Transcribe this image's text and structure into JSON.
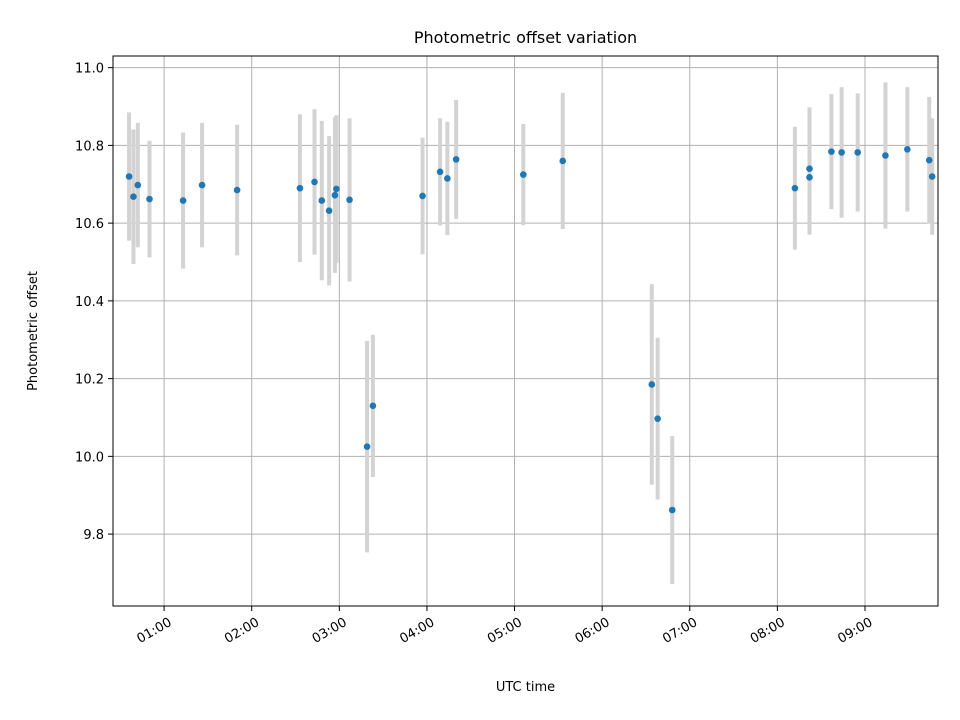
{
  "chart_data": {
    "type": "scatter",
    "title": "Photometric offset variation",
    "xlabel": "UTC time",
    "ylabel": "Photometric offset",
    "xlim": [
      "00:25",
      "09:50"
    ],
    "ylim": [
      9.615,
      11.03
    ],
    "x_ticks": [
      "01:00",
      "02:00",
      "03:00",
      "04:00",
      "05:00",
      "06:00",
      "07:00",
      "08:00",
      "09:00"
    ],
    "y_ticks": [
      "9.8",
      "10.0",
      "10.2",
      "10.4",
      "10.6",
      "10.8",
      "11.0"
    ],
    "grid": true,
    "marker_color": "#1f77b4",
    "errorbar_color": "#d3d3d3",
    "points": [
      {
        "t": "00:36",
        "y": 10.72,
        "err": 0.165
      },
      {
        "t": "00:39",
        "y": 10.668,
        "err": 0.173
      },
      {
        "t": "00:42",
        "y": 10.698,
        "err": 0.16
      },
      {
        "t": "00:50",
        "y": 10.662,
        "err": 0.15
      },
      {
        "t": "01:13",
        "y": 10.658,
        "err": 0.175
      },
      {
        "t": "01:26",
        "y": 10.698,
        "err": 0.16
      },
      {
        "t": "01:50",
        "y": 10.685,
        "err": 0.168
      },
      {
        "t": "02:33",
        "y": 10.69,
        "err": 0.19
      },
      {
        "t": "02:43",
        "y": 10.706,
        "err": 0.187
      },
      {
        "t": "02:48",
        "y": 10.658,
        "err": 0.205
      },
      {
        "t": "02:53",
        "y": 10.632,
        "err": 0.192
      },
      {
        "t": "02:57",
        "y": 10.672,
        "err": 0.2
      },
      {
        "t": "02:58",
        "y": 10.688,
        "err": 0.19
      },
      {
        "t": "03:07",
        "y": 10.66,
        "err": 0.21
      },
      {
        "t": "03:19",
        "y": 10.025,
        "err": 0.272
      },
      {
        "t": "03:23",
        "y": 10.13,
        "err": 0.183
      },
      {
        "t": "03:57",
        "y": 10.67,
        "err": 0.15
      },
      {
        "t": "04:09",
        "y": 10.732,
        "err": 0.138
      },
      {
        "t": "04:14",
        "y": 10.715,
        "err": 0.146
      },
      {
        "t": "04:20",
        "y": 10.764,
        "err": 0.153
      },
      {
        "t": "05:06",
        "y": 10.725,
        "err": 0.13
      },
      {
        "t": "05:33",
        "y": 10.76,
        "err": 0.175
      },
      {
        "t": "06:34",
        "y": 10.185,
        "err": 0.258
      },
      {
        "t": "06:38",
        "y": 10.097,
        "err": 0.208
      },
      {
        "t": "06:48",
        "y": 9.862,
        "err": 0.19
      },
      {
        "t": "08:12",
        "y": 10.69,
        "err": 0.158
      },
      {
        "t": "08:22",
        "y": 10.718,
        "err": 0.148
      },
      {
        "t": "08:22",
        "y": 10.74,
        "err": 0.158
      },
      {
        "t": "08:37",
        "y": 10.784,
        "err": 0.148
      },
      {
        "t": "08:44",
        "y": 10.782,
        "err": 0.168
      },
      {
        "t": "08:55",
        "y": 10.782,
        "err": 0.152
      },
      {
        "t": "09:14",
        "y": 10.774,
        "err": 0.188
      },
      {
        "t": "09:29",
        "y": 10.79,
        "err": 0.16
      },
      {
        "t": "09:44",
        "y": 10.762,
        "err": 0.163
      },
      {
        "t": "09:46",
        "y": 10.72,
        "err": 0.15
      }
    ]
  }
}
